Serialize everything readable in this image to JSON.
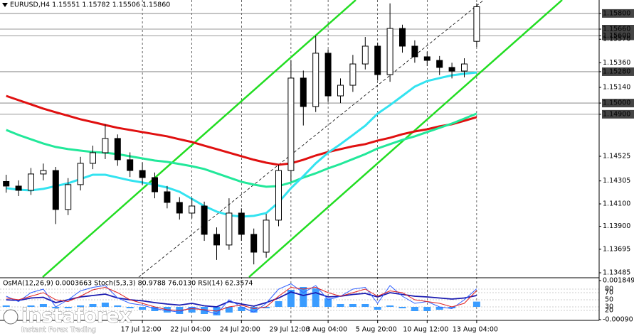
{
  "chart_data": [
    {
      "type": "candlestick",
      "title": "EURUSD,H4  1.15551 1.15782 1.15506 1.15860",
      "categories": [
        null,
        null,
        null,
        null,
        null,
        null,
        null,
        null,
        null,
        null,
        null,
        "17 Jul 12:00",
        null,
        null,
        null,
        "22 Jul 04:00",
        null,
        null,
        null,
        "24 Jul 20:00",
        null,
        null,
        null,
        "29 Jul 12:00",
        null,
        null,
        "3 Aug 04:00",
        null,
        null,
        null,
        "5 Aug 20:00",
        null,
        null,
        null,
        "10 Aug 12:00",
        null,
        null,
        null,
        "13 Aug 04:00"
      ],
      "candles": {
        "open": [
          1.143,
          1.14259,
          1.14221,
          1.14367,
          1.14398,
          1.1405,
          1.14272,
          1.14462,
          1.14557,
          1.14684,
          1.14494,
          1.14398,
          1.14335,
          1.14208,
          1.14113,
          1.14018,
          1.14081,
          1.13828,
          1.13733,
          1.14018,
          1.13828,
          1.13669,
          1.13955,
          1.14398,
          1.15223,
          1.14969,
          1.15445,
          1.15064,
          1.15159,
          1.15349,
          1.15508,
          1.15254,
          1.15666,
          1.15508,
          1.15413,
          1.15381,
          1.15318,
          1.15286,
          1.15551
        ],
        "high": [
          1.1436,
          1.1431,
          1.1442,
          1.1446,
          1.1443,
          1.1433,
          1.1452,
          1.1462,
          1.1481,
          1.1472,
          1.1456,
          1.1447,
          1.1438,
          1.1426,
          1.1416,
          1.1415,
          1.1412,
          1.1389,
          1.1415,
          1.1406,
          1.1388,
          1.1401,
          1.1445,
          1.1538,
          1.1529,
          1.156,
          1.1548,
          1.1522,
          1.1543,
          1.1559,
          1.1554,
          1.1589,
          1.157,
          1.1556,
          1.1546,
          1.1542,
          1.1536,
          1.154,
          1.1589
        ],
        "low": [
          1.142,
          1.1417,
          1.1418,
          1.1431,
          1.1392,
          1.14,
          1.1422,
          1.1441,
          1.145,
          1.1444,
          1.1434,
          1.1427,
          1.1415,
          1.1406,
          1.1396,
          1.1397,
          1.1377,
          1.136,
          1.1369,
          1.1377,
          1.1356,
          1.1362,
          1.139,
          1.143,
          1.148,
          1.1492,
          1.1501,
          1.15,
          1.151,
          1.153,
          1.152,
          1.1519,
          1.1545,
          1.1536,
          1.1533,
          1.1525,
          1.1522,
          1.1523,
          1.155
        ],
        "close": [
          1.14259,
          1.14221,
          1.14367,
          1.14398,
          1.1405,
          1.14272,
          1.14462,
          1.14557,
          1.14684,
          1.14494,
          1.14398,
          1.14335,
          1.14208,
          1.14113,
          1.14018,
          1.14081,
          1.13828,
          1.13733,
          1.14018,
          1.13828,
          1.13669,
          1.13955,
          1.14398,
          1.15223,
          1.14969,
          1.15445,
          1.15064,
          1.15159,
          1.15349,
          1.15508,
          1.15254,
          1.15666,
          1.15508,
          1.15413,
          1.15381,
          1.15318,
          1.15286,
          1.15349,
          1.1586
        ]
      },
      "series": [
        {
          "color": "#e01010",
          "values": [
            1.15064,
            1.15026,
            1.14988,
            1.1495,
            1.14918,
            1.14887,
            1.14855,
            1.1483,
            1.14804,
            1.14779,
            1.1476,
            1.14741,
            1.14722,
            1.14703,
            1.14677,
            1.14652,
            1.1462,
            1.14589,
            1.14557,
            1.14525,
            1.14494,
            1.14468,
            1.14449,
            1.14462,
            1.14494,
            1.14532,
            1.14563,
            1.14589,
            1.14614,
            1.14633,
            1.14665,
            1.1469,
            1.14722,
            1.14747,
            1.14766,
            1.14792,
            1.14811,
            1.14842,
            1.14874
          ]
        },
        {
          "color": "#22e89a",
          "values": [
            1.1476,
            1.14715,
            1.14677,
            1.14639,
            1.14608,
            1.14589,
            1.14576,
            1.14563,
            1.14557,
            1.14544,
            1.14525,
            1.14506,
            1.14487,
            1.14475,
            1.14456,
            1.14436,
            1.14411,
            1.14373,
            1.14335,
            1.14297,
            1.14272,
            1.14253,
            1.14259,
            1.14291,
            1.14335,
            1.14373,
            1.14417,
            1.14456,
            1.145,
            1.14544,
            1.14595,
            1.14633,
            1.14671,
            1.14703,
            1.14741,
            1.14779,
            1.14817,
            1.14861,
            1.14906
          ]
        },
        {
          "color": "#33e3f0",
          "values": [
            1.1424,
            1.14227,
            1.14221,
            1.14234,
            1.14259,
            1.14284,
            1.14322,
            1.1436,
            1.1436,
            1.14335,
            1.1431,
            1.14291,
            1.14272,
            1.14246,
            1.14208,
            1.14145,
            1.14081,
            1.14031,
            1.13999,
            1.13986,
            1.13993,
            1.14018,
            1.14113,
            1.1424,
            1.14348,
            1.14462,
            1.14557,
            1.14633,
            1.14715,
            1.14798,
            1.14906,
            1.14982,
            1.15064,
            1.15147,
            1.15197,
            1.15223,
            1.15248,
            1.15261,
            1.15273
          ]
        }
      ],
      "levels": [
        1.158,
        1.1566,
        1.156,
        1.1528,
        1.15,
        1.149
      ],
      "ylim": [
        1.13447,
        1.1592
      ],
      "yticks": [
        {
          "value": 1.158,
          "label": "1.15800"
        },
        {
          "value": 1.1566,
          "label": "1.15660"
        },
        {
          "value": 1.156,
          "label": "1.15600"
        },
        {
          "value": 1.1557,
          "label": "1.15570"
        },
        {
          "value": 1.1536,
          "label": "1.15360"
        },
        {
          "value": 1.1528,
          "label": "1.15280"
        },
        {
          "value": 1.1514,
          "label": "1.15140"
        },
        {
          "value": 1.15,
          "label": "1.15000"
        },
        {
          "value": 1.149,
          "label": "1.14900"
        },
        {
          "value": 1.14525,
          "label": "1.14525"
        },
        {
          "value": 1.14305,
          "label": "1.14305"
        },
        {
          "value": 1.141,
          "label": "1.14100"
        },
        {
          "value": 1.139,
          "label": "1.13900"
        },
        {
          "value": 1.13695,
          "label": "1.13695"
        },
        {
          "value": 1.13485,
          "label": "1.13485"
        }
      ],
      "grid": true,
      "branding": {
        "name": "instaforex",
        "tagline": "Instant Forex Trading"
      }
    },
    {
      "type": "oscillator",
      "title": "OsMA(12,26,9) 0.0003663  Stoch(5,3,3) 80.9788 76.0130  RSI(14) 62.3574",
      "histogram": {
        "color": "#3a9cff",
        "axis": "y2",
        "values": [
          0.0001,
          0,
          0.0001,
          0.0002,
          -0.0001,
          -0.0001,
          0.0001,
          0.0002,
          0.0003,
          0.0001,
          -0.0001,
          -0.0002,
          -0.0003,
          -0.0004,
          -0.0005,
          -0.0004,
          -0.0005,
          -0.0006,
          -0.0004,
          -0.0003,
          -0.0004,
          -0.0001,
          0.0004,
          0.0012,
          0.0014,
          0.0013,
          0.0006,
          0.0002,
          0.0002,
          0.0002,
          -0.0002,
          0.0001,
          -0.0001,
          -0.0003,
          -0.0003,
          -0.0002,
          -0.0001,
          0,
          0.00037
        ]
      },
      "series": [
        {
          "color": "#1a1ab0",
          "values": [
            50,
            48,
            55,
            57,
            42,
            50,
            58,
            62,
            66,
            55,
            50,
            47,
            42,
            38,
            35,
            40,
            33,
            30,
            45,
            38,
            32,
            42,
            55,
            72,
            62,
            70,
            58,
            60,
            65,
            68,
            58,
            70,
            65,
            60,
            58,
            55,
            52,
            55,
            62
          ]
        },
        {
          "color": "#3060ff",
          "values": [
            60,
            45,
            70,
            80,
            30,
            50,
            75,
            85,
            90,
            55,
            40,
            35,
            25,
            20,
            15,
            30,
            20,
            10,
            50,
            30,
            15,
            40,
            80,
            95,
            70,
            90,
            50,
            60,
            80,
            85,
            40,
            90,
            60,
            40,
            45,
            30,
            25,
            50,
            81
          ]
        },
        {
          "color": "#e02020",
          "values": [
            55,
            50,
            60,
            70,
            50,
            45,
            60,
            78,
            85,
            70,
            50,
            40,
            30,
            22,
            20,
            25,
            22,
            18,
            30,
            35,
            25,
            30,
            60,
            85,
            80,
            85,
            70,
            60,
            70,
            80,
            60,
            75,
            70,
            50,
            45,
            40,
            30,
            40,
            76
          ]
        }
      ],
      "ylim": [
        0,
        100
      ],
      "yticks": [
        20,
        30,
        50,
        70,
        80
      ],
      "y2lim": [
        -0.0009,
        0.001849
      ],
      "y2ticks": [
        {
          "value": 0.001849,
          "label": "0.001849"
        },
        {
          "value": -0.0009,
          "label": "-0.00090"
        }
      ]
    }
  ]
}
